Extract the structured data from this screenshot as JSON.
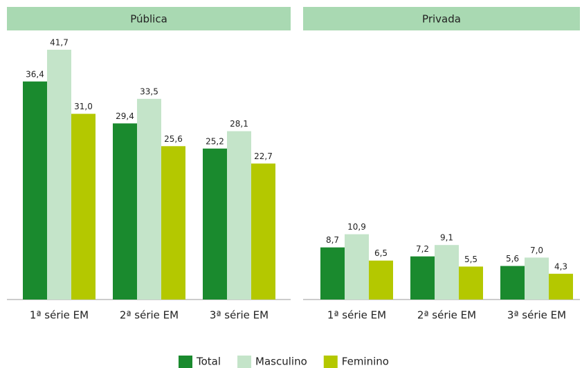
{
  "chart_data": [
    {
      "type": "bar",
      "title": "Pública",
      "categories": [
        "1ª série EM",
        "2ª série EM",
        "3ª série EM"
      ],
      "series": [
        {
          "name": "Total",
          "color": "#1a8a2e",
          "values": [
            36.4,
            29.4,
            25.2
          ],
          "value_labels": [
            "36,4",
            "29,4",
            "25,2"
          ]
        },
        {
          "name": "Masculino",
          "color": "#c4e4c9",
          "values": [
            41.7,
            33.5,
            28.1
          ],
          "value_labels": [
            "41,7",
            "33,5",
            "28,1"
          ]
        },
        {
          "name": "Feminino",
          "color": "#b4c800",
          "values": [
            31.0,
            25.6,
            22.7
          ],
          "value_labels": [
            "31,0",
            "25,6",
            "22,7"
          ]
        }
      ]
    },
    {
      "type": "bar",
      "title": "Privada",
      "categories": [
        "1ª série EM",
        "2ª série EM",
        "3ª série EM"
      ],
      "series": [
        {
          "name": "Total",
          "color": "#1a8a2e",
          "values": [
            8.7,
            7.2,
            5.6
          ],
          "value_labels": [
            "8,7",
            "7,2",
            "5,6"
          ]
        },
        {
          "name": "Masculino",
          "color": "#c4e4c9",
          "values": [
            10.9,
            9.1,
            7.0
          ],
          "value_labels": [
            "10,9",
            "9,1",
            "7,0"
          ]
        },
        {
          "name": "Feminino",
          "color": "#b4c800",
          "values": [
            6.5,
            5.5,
            4.3
          ],
          "value_labels": [
            "6,5",
            "5,5",
            "4,3"
          ]
        }
      ]
    }
  ]
}
